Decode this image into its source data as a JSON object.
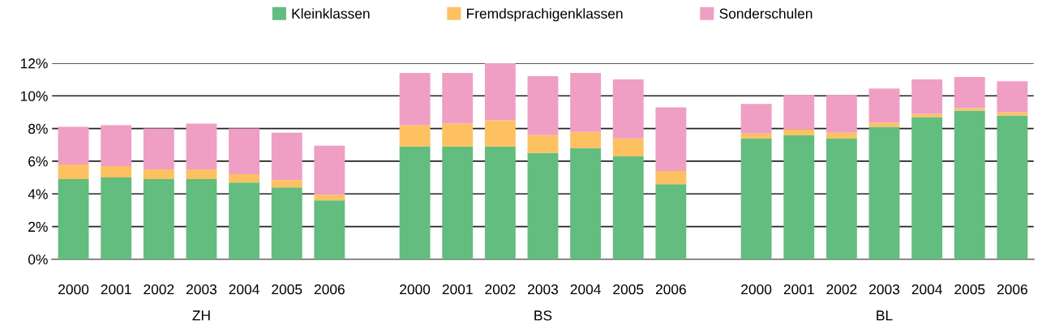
{
  "chart_data": {
    "type": "bar",
    "stacked": true,
    "categories": [
      "2000",
      "2001",
      "2002",
      "2003",
      "2004",
      "2005",
      "2006",
      null,
      "2000",
      "2001",
      "2002",
      "2003",
      "2004",
      "2005",
      "2006",
      null,
      "2000",
      "2001",
      "2002",
      "2003",
      "2004",
      "2005",
      "2006"
    ],
    "series": [
      {
        "name": "Kleinklassen",
        "color": "#62bd7e",
        "values": [
          4.9,
          5.0,
          4.9,
          4.9,
          4.7,
          4.4,
          3.6,
          null,
          6.9,
          6.9,
          6.9,
          6.5,
          6.8,
          6.3,
          4.6,
          null,
          7.4,
          7.6,
          7.4,
          8.1,
          8.7,
          9.1,
          8.8
        ]
      },
      {
        "name": "Fremdsprachigenklassen",
        "color": "#fdc161",
        "values": [
          0.9,
          0.7,
          0.6,
          0.6,
          0.5,
          0.45,
          0.35,
          null,
          1.3,
          1.4,
          1.6,
          1.1,
          1.0,
          1.1,
          0.8,
          null,
          0.3,
          0.35,
          0.35,
          0.25,
          0.2,
          0.15,
          0.2
        ]
      },
      {
        "name": "Sonderschulen",
        "color": "#ef9ec4",
        "values": [
          2.3,
          2.5,
          2.5,
          2.8,
          2.8,
          2.9,
          3.0,
          null,
          3.2,
          3.1,
          3.5,
          3.6,
          3.6,
          3.6,
          3.9,
          null,
          1.8,
          2.1,
          2.3,
          2.1,
          2.1,
          1.9,
          1.9
        ]
      }
    ],
    "ylim": [
      0,
      12
    ],
    "yticks": [
      {
        "value": 0,
        "label": "0%"
      },
      {
        "value": 2,
        "label": "2%"
      },
      {
        "value": 4,
        "label": "4%"
      },
      {
        "value": 6,
        "label": "6%"
      },
      {
        "value": 8,
        "label": "8%"
      },
      {
        "value": 10,
        "label": "10%"
      },
      {
        "value": 12,
        "label": "12%"
      }
    ],
    "grid": "y",
    "legend": "top",
    "annotations": [
      "ZH",
      "BS",
      "BL"
    ]
  }
}
